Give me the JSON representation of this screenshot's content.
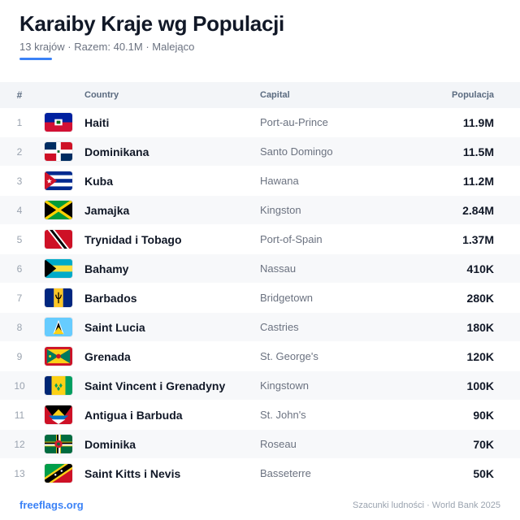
{
  "header": {
    "title": "Karaiby Kraje wg Populacji",
    "subtitle": "13 krajów · Razem: 40.1M · Malejąco"
  },
  "table": {
    "columns": [
      "#",
      "Country",
      "Capital",
      "Populacja"
    ],
    "rows": [
      {
        "rank": "1",
        "flag": "haiti-flag",
        "country": "Haiti",
        "capital": "Port-au-Prince",
        "population": "11.9M"
      },
      {
        "rank": "2",
        "flag": "dominican-republic-flag",
        "country": "Dominikana",
        "capital": "Santo Domingo",
        "population": "11.5M"
      },
      {
        "rank": "3",
        "flag": "cuba-flag",
        "country": "Kuba",
        "capital": "Hawana",
        "population": "11.2M"
      },
      {
        "rank": "4",
        "flag": "jamaica-flag",
        "country": "Jamajka",
        "capital": "Kingston",
        "population": "2.84M"
      },
      {
        "rank": "5",
        "flag": "trinidad-and-tobago-flag",
        "country": "Trynidad i Tobago",
        "capital": "Port-of-Spain",
        "population": "1.37M"
      },
      {
        "rank": "6",
        "flag": "bahamas-flag",
        "country": "Bahamy",
        "capital": "Nassau",
        "population": "410K"
      },
      {
        "rank": "7",
        "flag": "barbados-flag",
        "country": "Barbados",
        "capital": "Bridgetown",
        "population": "280K"
      },
      {
        "rank": "8",
        "flag": "saint-lucia-flag",
        "country": "Saint Lucia",
        "capital": "Castries",
        "population": "180K"
      },
      {
        "rank": "9",
        "flag": "grenada-flag",
        "country": "Grenada",
        "capital": "St. George's",
        "population": "120K"
      },
      {
        "rank": "10",
        "flag": "saint-vincent-flag",
        "country": "Saint Vincent i Grenadyny",
        "capital": "Kingstown",
        "population": "100K"
      },
      {
        "rank": "11",
        "flag": "antigua-and-barbuda-flag",
        "country": "Antigua i Barbuda",
        "capital": "St. John's",
        "population": "90K"
      },
      {
        "rank": "12",
        "flag": "dominica-flag",
        "country": "Dominika",
        "capital": "Roseau",
        "population": "70K"
      },
      {
        "rank": "13",
        "flag": "saint-kitts-and-nevis-flag",
        "country": "Saint Kitts i Nevis",
        "capital": "Basseterre",
        "population": "50K"
      }
    ]
  },
  "footer": {
    "link": "freeflags.org",
    "source": "Szacunki ludności · World Bank 2025"
  },
  "colors": {
    "accent": "#3b82f6",
    "link": "#3b82f6"
  }
}
